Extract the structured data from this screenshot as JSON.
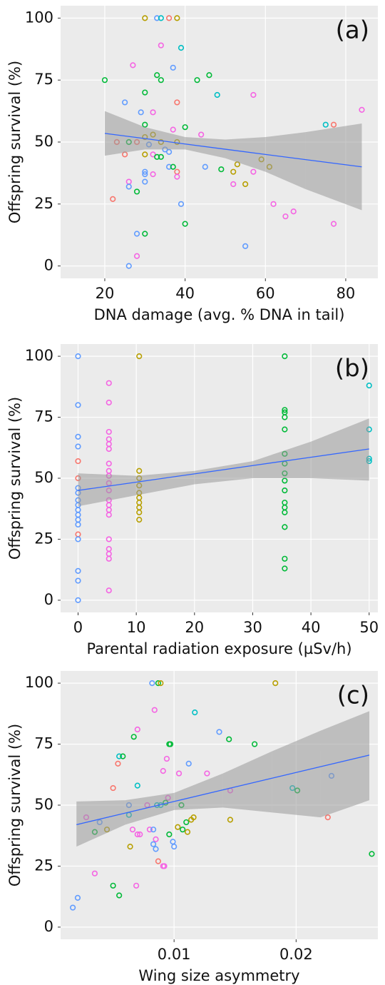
{
  "chart_data": [
    {
      "type": "scatter",
      "label": "(a)",
      "x_label": "DNA damage (avg. % DNA in tail)",
      "y_label": "Offspring survival (%)",
      "xlim": [
        9,
        88
      ],
      "ylim": [
        -5,
        105
      ],
      "xticks": [
        20,
        40,
        60,
        80
      ],
      "yticks": [
        0,
        25,
        50,
        75,
        100
      ],
      "grid": true,
      "x": [
        30,
        33,
        34,
        36,
        38,
        20,
        27,
        34,
        39,
        37,
        33,
        34,
        43,
        46,
        48,
        57,
        25,
        30,
        38,
        32,
        29,
        30,
        37,
        40,
        44,
        75,
        77,
        84,
        23,
        26,
        28,
        30,
        31,
        32,
        34,
        35,
        36,
        38,
        30,
        25,
        32,
        33,
        34,
        36,
        37,
        38,
        45,
        49,
        52,
        53,
        57,
        59,
        61,
        30,
        30,
        32,
        38,
        26,
        26,
        28,
        22,
        30,
        52,
        55,
        39,
        62,
        65,
        67,
        40,
        77,
        28,
        30,
        55,
        28,
        26
      ],
      "y": [
        100,
        100,
        100,
        100,
        100,
        75,
        81,
        89,
        88,
        80,
        77,
        75,
        75,
        77,
        69,
        69,
        66,
        70,
        66,
        62,
        62,
        57,
        55,
        56,
        53,
        57,
        57,
        63,
        50,
        50,
        50,
        52,
        49,
        53,
        50,
        47,
        46,
        50,
        45,
        45,
        45,
        44,
        44,
        40,
        40,
        38,
        40,
        39,
        38,
        41,
        38,
        43,
        40,
        37,
        34,
        37,
        36,
        34,
        32,
        30,
        27,
        38,
        33,
        33,
        25,
        25,
        20,
        22,
        17,
        17,
        13,
        13,
        8,
        4,
        0
      ],
      "colors": [
        "#B79F00",
        "#619CFF",
        "#00BFC4",
        "#F8766D",
        "#B79F00",
        "#00BA38",
        "#F564E3",
        "#F564E3",
        "#00BFC4",
        "#619CFF",
        "#00BA38",
        "#00BA38",
        "#00BA38",
        "#00BA38",
        "#00BFC4",
        "#F564E3",
        "#619CFF",
        "#00BA38",
        "#F8766D",
        "#F564E3",
        "#619CFF",
        "#00BA38",
        "#F564E3",
        "#00BA38",
        "#F564E3",
        "#00BFC4",
        "#F8766D",
        "#F564E3",
        "#F8766D",
        "#00BA38",
        "#F8766D",
        "#B79F00",
        "#619CFF",
        "#B79F00",
        "#B79F00",
        "#619CFF",
        "#619CFF",
        "#B79F00",
        "#B79F00",
        "#F8766D",
        "#F564E3",
        "#00BA38",
        "#00BA38",
        "#619CFF",
        "#00BA38",
        "#F8766D",
        "#619CFF",
        "#00BA38",
        "#B79F00",
        "#B79F00",
        "#F564E3",
        "#B79F00",
        "#B79F00",
        "#619CFF",
        "#619CFF",
        "#F564E3",
        "#F564E3",
        "#F564E3",
        "#619CFF",
        "#00BA38",
        "#F8766D",
        "#619CFF",
        "#F564E3",
        "#B79F00",
        "#619CFF",
        "#F564E3",
        "#F564E3",
        "#F564E3",
        "#00BA38",
        "#F564E3",
        "#619CFF",
        "#00BA38",
        "#619CFF",
        "#F564E3",
        "#619CFF"
      ],
      "fit": {
        "x": [
          20,
          30,
          40,
          50,
          60,
          70,
          84
        ],
        "y": [
          53.5,
          51.4,
          49.2,
          47.1,
          45,
          42.9,
          40
        ],
        "lower": [
          44.5,
          47,
          47,
          43.5,
          38,
          31,
          22.5
        ],
        "upper": [
          62.5,
          56,
          52,
          51,
          52,
          54,
          57.5
        ]
      }
    },
    {
      "type": "scatter",
      "label": "(b)",
      "x_label": "Parental radiation exposure (µSv/h)",
      "y_label": "Offspring survival (%)",
      "xlim": [
        -3,
        51.5
      ],
      "ylim": [
        -5,
        105
      ],
      "xticks": [
        0,
        10,
        20,
        30,
        40,
        50
      ],
      "yticks": [
        0,
        25,
        50,
        75,
        100
      ],
      "grid": true,
      "x": [
        0,
        0,
        0,
        0,
        0,
        0,
        0,
        0,
        0,
        0,
        0,
        0,
        0,
        0,
        0,
        0,
        0,
        0,
        0,
        5.3,
        5.3,
        5.3,
        5.3,
        5.3,
        5.3,
        5.3,
        5.3,
        5.3,
        5.3,
        5.3,
        5.3,
        5.3,
        5.3,
        5.3,
        5.3,
        5.3,
        5.3,
        5.3,
        5.3,
        10.5,
        10.5,
        10.5,
        10.5,
        10.5,
        10.5,
        10.5,
        10.5,
        10.5,
        10.5,
        35.5,
        35.5,
        35.5,
        35.5,
        35.5,
        35.5,
        35.5,
        35.5,
        35.5,
        35.5,
        35.5,
        35.5,
        35.5,
        35.5,
        35.5,
        35.5,
        50,
        50,
        50,
        50
      ],
      "y": [
        100,
        80,
        67,
        63,
        57,
        50,
        46,
        44,
        41,
        39,
        37,
        35,
        33,
        31,
        27,
        25,
        12,
        8,
        0,
        89,
        81,
        69,
        66,
        64,
        62,
        56,
        53,
        51,
        48,
        45,
        41,
        39,
        37,
        35,
        25,
        21,
        19,
        17,
        4,
        100,
        53,
        50,
        47,
        44,
        42,
        40,
        38,
        36,
        33,
        100,
        78,
        77,
        75,
        70,
        60,
        56,
        52,
        49,
        45,
        40,
        38,
        36,
        30,
        17,
        13,
        88,
        70,
        58,
        57
      ],
      "colors": [
        "#619CFF",
        "#619CFF",
        "#619CFF",
        "#619CFF",
        "#F8766D",
        "#F8766D",
        "#619CFF",
        "#619CFF",
        "#619CFF",
        "#619CFF",
        "#619CFF",
        "#619CFF",
        "#619CFF",
        "#619CFF",
        "#F8766D",
        "#619CFF",
        "#619CFF",
        "#619CFF",
        "#619CFF",
        "#F564E3",
        "#F564E3",
        "#F564E3",
        "#F564E3",
        "#F564E3",
        "#F564E3",
        "#F564E3",
        "#F564E3",
        "#F564E3",
        "#F564E3",
        "#F564E3",
        "#F564E3",
        "#F564E3",
        "#F564E3",
        "#F564E3",
        "#F564E3",
        "#F564E3",
        "#F564E3",
        "#F564E3",
        "#F564E3",
        "#B79F00",
        "#B79F00",
        "#B79F00",
        "#B79F00",
        "#B79F00",
        "#B79F00",
        "#B79F00",
        "#B79F00",
        "#B79F00",
        "#B79F00",
        "#00BA38",
        "#00BA38",
        "#00BA38",
        "#00BA38",
        "#00BA38",
        "#00BA38",
        "#00BA38",
        "#00BA38",
        "#00BA38",
        "#00BA38",
        "#00BA38",
        "#00BA38",
        "#00BA38",
        "#00BA38",
        "#00BA38",
        "#00BA38",
        "#00BFC4",
        "#00BFC4",
        "#00BFC4",
        "#00BFC4"
      ],
      "fit": {
        "x": [
          0,
          10,
          20,
          30,
          40,
          50
        ],
        "y": [
          45,
          48.4,
          51.8,
          55.2,
          58.6,
          62
        ],
        "lower": [
          38.5,
          43,
          47.5,
          50,
          50,
          49
        ],
        "upper": [
          52,
          51,
          53,
          57,
          65,
          74.5
        ]
      }
    },
    {
      "type": "scatter",
      "label": "(c)",
      "x_label": "Wing size asymmetry",
      "y_label": "Offspring survival (%)",
      "xlim": [
        0.0007,
        0.0267
      ],
      "ylim": [
        -5,
        105
      ],
      "xticks": [
        0.01,
        0.02
      ],
      "yticks": [
        0,
        25,
        50,
        75,
        100
      ],
      "grid": true,
      "x": [
        0.0082,
        0.0087,
        0.0089,
        0.0183,
        0.0084,
        0.0117,
        0.007,
        0.0067,
        0.0096,
        0.0097,
        0.0137,
        0.0145,
        0.0166,
        0.0055,
        0.0058,
        0.0054,
        0.0112,
        0.0094,
        0.0091,
        0.0104,
        0.0127,
        0.0063,
        0.007,
        0.005,
        0.0095,
        0.0093,
        0.0089,
        0.0086,
        0.0106,
        0.0078,
        0.0146,
        0.0197,
        0.0201,
        0.0229,
        0.0028,
        0.0035,
        0.0039,
        0.0045,
        0.0063,
        0.0066,
        0.007,
        0.0072,
        0.008,
        0.0083,
        0.0085,
        0.0085,
        0.0096,
        0.0099,
        0.01,
        0.0103,
        0.0107,
        0.011,
        0.0114,
        0.0111,
        0.0116,
        0.0146,
        0.0226,
        0.0262,
        0.0064,
        0.0083,
        0.0087,
        0.0091,
        0.0092,
        0.0035,
        0.005,
        0.0069,
        0.0055,
        0.0021,
        0.0017
      ],
      "y": [
        100,
        100,
        100,
        100,
        89,
        88,
        81,
        78,
        75,
        75,
        80,
        77,
        75,
        70,
        70,
        67,
        67,
        69,
        64,
        63,
        63,
        50,
        58,
        57,
        53,
        51,
        50,
        50,
        50,
        50,
        56,
        57,
        56,
        62,
        45,
        39,
        43,
        40,
        46,
        40,
        38,
        38,
        40,
        40,
        36,
        32,
        38,
        35,
        33,
        41,
        40,
        43,
        44,
        39,
        45,
        44,
        45,
        30,
        33,
        34,
        27,
        25,
        25,
        22,
        17,
        17,
        13,
        12,
        8
      ],
      "colors": [
        "#619CFF",
        "#00BA38",
        "#B79F00",
        "#B79F00",
        "#F564E3",
        "#00BFC4",
        "#F564E3",
        "#00BA38",
        "#00BA38",
        "#00BA38",
        "#619CFF",
        "#00BA38",
        "#00BA38",
        "#00BFC4",
        "#00BA38",
        "#F8766D",
        "#619CFF",
        "#F564E3",
        "#F564E3",
        "#F564E3",
        "#F564E3",
        "#619CFF",
        "#00BFC4",
        "#F8766D",
        "#F564E3",
        "#00BA38",
        "#00BFC4",
        "#00BFC4",
        "#00BA38",
        "#F564E3",
        "#F564E3",
        "#00BFC4",
        "#00BA38",
        "#619CFF",
        "#F564E3",
        "#00BA38",
        "#619CFF",
        "#B79F00",
        "#00BFC4",
        "#F564E3",
        "#F564E3",
        "#F564E3",
        "#F564E3",
        "#619CFF",
        "#F564E3",
        "#619CFF",
        "#00BA38",
        "#619CFF",
        "#619CFF",
        "#B79F00",
        "#00BA38",
        "#00BA38",
        "#B79F00",
        "#B79F00",
        "#B79F00",
        "#B79F00",
        "#F8766D",
        "#00BA38",
        "#B79F00",
        "#619CFF",
        "#F8766D",
        "#F564E3",
        "#F564E3",
        "#F564E3",
        "#00BA38",
        "#F564E3",
        "#00BA38",
        "#619CFF",
        "#619CFF"
      ],
      "fit": {
        "x": [
          0.002,
          0.006,
          0.01,
          0.014,
          0.018,
          0.022,
          0.026
        ],
        "y": [
          42,
          46.75,
          51.5,
          56.25,
          61,
          65.75,
          70.5
        ],
        "lower": [
          33,
          42,
          48,
          49,
          47,
          45,
          52
        ],
        "upper": [
          51.5,
          52,
          55,
          63,
          72,
          80.5,
          88.5
        ]
      }
    }
  ]
}
